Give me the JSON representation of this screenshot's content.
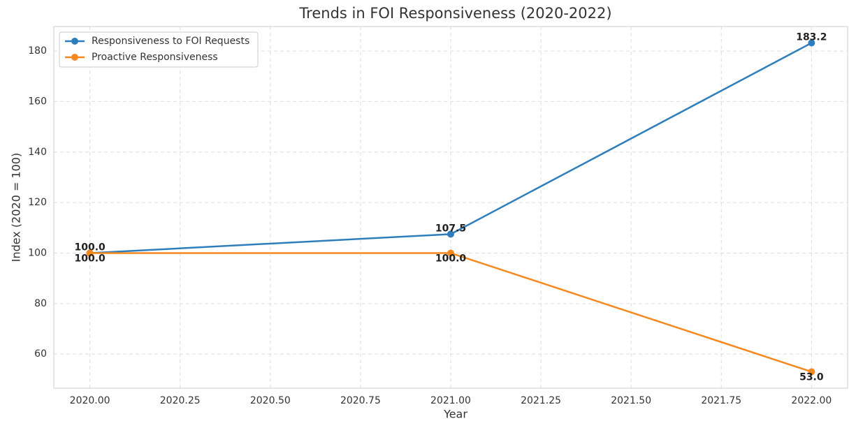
{
  "chart_data": {
    "type": "line",
    "title": "Trends in FOI Responsiveness (2020-2022)",
    "x_label": "Year",
    "y_label": "Index (2020 = 100)",
    "x": [
      2020,
      2021,
      2022
    ],
    "series": [
      {
        "name": "Responsiveness to FOI Requests",
        "color": "#2e7ebc",
        "values": [
          100,
          107.5,
          183.2
        ],
        "value_labels": [
          "100.0",
          "107.5",
          "183.2"
        ]
      },
      {
        "name": "Proactive Responsiveness",
        "color": "#f5891f",
        "values": [
          100,
          100,
          53
        ],
        "value_labels": [
          "100.0",
          "100.0",
          "53.0"
        ]
      }
    ],
    "xlim": [
      2019.9,
      2022.1
    ],
    "xticks": [
      {
        "value": 2020,
        "label": "2020.00"
      },
      {
        "value": 2020.25,
        "label": "2020.25"
      },
      {
        "value": 2020.5,
        "label": "2020.50"
      },
      {
        "value": 2020.75,
        "label": "2020.75"
      },
      {
        "value": 2021,
        "label": "2021.00"
      },
      {
        "value": 2021.25,
        "label": "2021.25"
      },
      {
        "value": 2021.5,
        "label": "2021.50"
      },
      {
        "value": 2021.75,
        "label": "2021.75"
      },
      {
        "value": 2022,
        "label": "2022.00"
      }
    ],
    "ylim": [
      46.5,
      189.7
    ],
    "yticks": [
      60,
      80,
      100,
      120,
      140,
      160,
      180
    ],
    "grid": true,
    "legend": "upper-left"
  }
}
